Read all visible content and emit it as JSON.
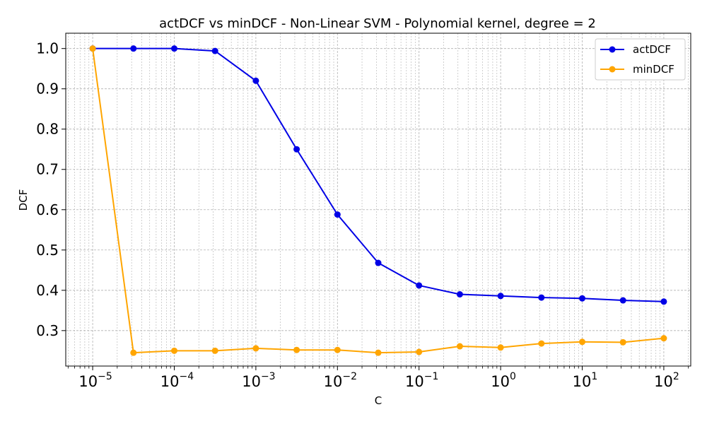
{
  "chart_data": {
    "type": "line",
    "title": "actDCF vs minDCF - Non-Linear SVM - Polynomial kernel, degree = 2",
    "xlabel": "C",
    "ylabel": "DCF",
    "xscale": "log",
    "x_log10": [
      -5,
      -4.5,
      -4,
      -3.5,
      -3,
      -2.5,
      -2,
      -1.5,
      -1,
      -0.5,
      0,
      0.5,
      1,
      1.5,
      2
    ],
    "xlim_log10": [
      -5.33,
      2.33
    ],
    "ylim": [
      0.212,
      1.038
    ],
    "x_ticks": [
      {
        "base": "10",
        "exp": "−5",
        "value": -5
      },
      {
        "base": "10",
        "exp": "−4",
        "value": -4
      },
      {
        "base": "10",
        "exp": "−3",
        "value": -3
      },
      {
        "base": "10",
        "exp": "−2",
        "value": -2
      },
      {
        "base": "10",
        "exp": "−1",
        "value": -1
      },
      {
        "base": "10",
        "exp": "0",
        "value": 0
      },
      {
        "base": "10",
        "exp": "1",
        "value": 1
      },
      {
        "base": "10",
        "exp": "2",
        "value": 2
      }
    ],
    "y_ticks": [
      "0.3",
      "0.4",
      "0.5",
      "0.6",
      "0.7",
      "0.8",
      "0.9",
      "1.0"
    ],
    "y_tick_values": [
      0.3,
      0.4,
      0.5,
      0.6,
      0.7,
      0.8,
      0.9,
      1.0
    ],
    "series": [
      {
        "name": "actDCF",
        "color": "#0000e6",
        "values": [
          1.0,
          1.0,
          1.0,
          0.994,
          0.92,
          0.75,
          0.588,
          0.468,
          0.412,
          0.39,
          0.386,
          0.382,
          0.38,
          0.375,
          0.372
        ]
      },
      {
        "name": "minDCF",
        "color": "#ffa500",
        "values": [
          1.0,
          0.245,
          0.25,
          0.25,
          0.256,
          0.252,
          0.252,
          0.245,
          0.247,
          0.261,
          0.258,
          0.268,
          0.272,
          0.271,
          0.281
        ]
      }
    ],
    "grid": true,
    "legend": "top-right"
  }
}
